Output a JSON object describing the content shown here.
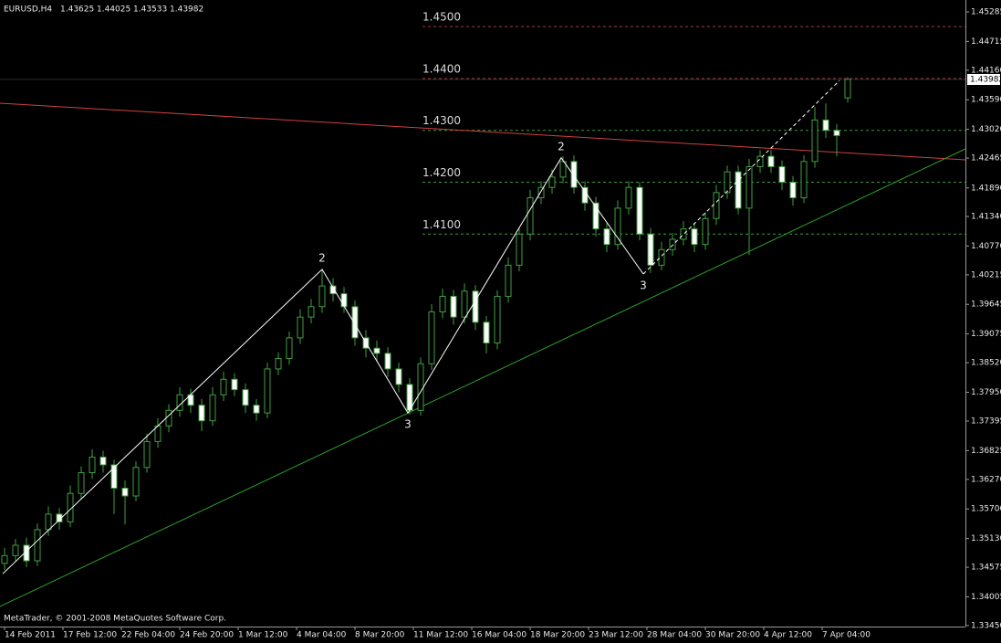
{
  "chart_data": {
    "type": "candlestick",
    "symbol": "EURUSD,H4",
    "footer": "MetaTrader, © 2001-2008 MetaQuotes Software Corp.",
    "x": [
      0,
      3,
      6,
      9,
      12,
      15,
      18,
      21,
      24,
      27,
      30,
      33,
      36,
      39,
      42,
      45,
      48,
      51,
      54,
      57,
      60,
      63,
      66,
      69,
      72,
      75,
      78,
      81,
      84,
      87,
      90,
      93,
      96,
      99,
      102,
      105,
      108,
      111,
      114,
      117,
      120,
      123,
      126,
      129,
      132,
      135,
      138,
      141,
      144,
      147,
      150,
      153,
      156,
      159,
      162,
      165,
      168,
      171,
      174,
      177,
      180,
      183,
      186,
      189,
      192,
      195,
      198,
      201,
      204,
      207,
      210,
      213,
      216,
      219,
      222,
      225,
      228,
      231
    ],
    "open": [
      1.3465,
      1.348,
      1.35,
      1.347,
      1.353,
      1.356,
      1.3545,
      1.36,
      1.364,
      1.367,
      1.3655,
      1.361,
      1.3595,
      1.365,
      1.37,
      1.373,
      1.376,
      1.379,
      1.377,
      1.374,
      1.379,
      1.382,
      1.38,
      1.377,
      1.3755,
      1.384,
      1.386,
      1.39,
      1.394,
      1.396,
      1.4,
      1.3985,
      1.396,
      1.39,
      1.388,
      1.387,
      1.384,
      1.381,
      1.376,
      1.385,
      1.395,
      1.398,
      1.394,
      1.399,
      1.393,
      1.389,
      1.398,
      1.404,
      1.41,
      1.417,
      1.419,
      1.421,
      1.424,
      1.419,
      1.416,
      1.411,
      1.408,
      1.415,
      1.419,
      1.41,
      1.404,
      1.407,
      1.409,
      1.411,
      1.408,
      1.413,
      1.418,
      1.422,
      1.415,
      1.423,
      1.425,
      1.423,
      1.42,
      1.417,
      1.424,
      1.432,
      1.43,
      1.43625
    ],
    "high": [
      1.3495,
      1.3512,
      1.3515,
      1.3542,
      1.3575,
      1.3572,
      1.3615,
      1.3652,
      1.3685,
      1.3682,
      1.3665,
      1.3625,
      1.3662,
      1.3715,
      1.3745,
      1.3772,
      1.3805,
      1.3802,
      1.3782,
      1.3805,
      1.3835,
      1.3832,
      1.3812,
      1.3782,
      1.3852,
      1.3872,
      1.3912,
      1.3955,
      1.3975,
      1.403,
      1.4015,
      1.3998,
      1.3972,
      1.3915,
      1.3895,
      1.3882,
      1.3852,
      1.3822,
      1.3862,
      1.3965,
      1.3995,
      1.3992,
      1.4005,
      1.4002,
      1.3942,
      1.3992,
      1.4055,
      1.4112,
      1.4185,
      1.4202,
      1.4225,
      1.425,
      1.4252,
      1.4202,
      1.4172,
      1.4122,
      1.4165,
      1.4202,
      1.42,
      1.4112,
      1.4085,
      1.4102,
      1.4125,
      1.4122,
      1.4142,
      1.4195,
      1.4232,
      1.4232,
      1.4245,
      1.4262,
      1.4262,
      1.4242,
      1.4212,
      1.4252,
      1.4345,
      1.4352,
      1.4312,
      1.44025
    ],
    "low": [
      1.3452,
      1.3468,
      1.3458,
      1.346,
      1.3518,
      1.353,
      1.3535,
      1.3588,
      1.3628,
      1.364,
      1.356,
      1.354,
      1.3585,
      1.364,
      1.3688,
      1.3718,
      1.3748,
      1.3755,
      1.372,
      1.373,
      1.3778,
      1.3788,
      1.3755,
      1.374,
      1.3745,
      1.3828,
      1.3848,
      1.3888,
      1.3928,
      1.3948,
      1.397,
      1.3948,
      1.3885,
      1.3862,
      1.3855,
      1.3825,
      1.3795,
      1.3752,
      1.375,
      1.3838,
      1.3938,
      1.3925,
      1.3928,
      1.3915,
      1.387,
      1.3878,
      1.3968,
      1.4028,
      1.4088,
      1.4158,
      1.4178,
      1.4198,
      1.4178,
      1.4145,
      1.4095,
      1.4065,
      1.407,
      1.4138,
      1.4088,
      1.4025,
      1.403,
      1.4058,
      1.4078,
      1.4065,
      1.407,
      1.4118,
      1.4168,
      1.4138,
      1.406,
      1.4218,
      1.4218,
      1.4185,
      1.4155,
      1.416,
      1.4228,
      1.4285,
      1.425,
      1.43533
    ],
    "close": [
      1.348,
      1.35,
      1.347,
      1.353,
      1.356,
      1.3545,
      1.36,
      1.364,
      1.367,
      1.3655,
      1.361,
      1.3595,
      1.365,
      1.37,
      1.373,
      1.376,
      1.379,
      1.377,
      1.374,
      1.379,
      1.382,
      1.38,
      1.377,
      1.3755,
      1.384,
      1.386,
      1.39,
      1.394,
      1.396,
      1.4,
      1.3985,
      1.396,
      1.39,
      1.388,
      1.387,
      1.384,
      1.381,
      1.376,
      1.385,
      1.395,
      1.398,
      1.394,
      1.399,
      1.393,
      1.389,
      1.398,
      1.404,
      1.41,
      1.417,
      1.419,
      1.421,
      1.424,
      1.419,
      1.416,
      1.411,
      1.408,
      1.415,
      1.419,
      1.41,
      1.404,
      1.407,
      1.409,
      1.411,
      1.408,
      1.413,
      1.418,
      1.422,
      1.415,
      1.423,
      1.425,
      1.423,
      1.42,
      1.417,
      1.424,
      1.432,
      1.43,
      1.429,
      1.43982
    ],
    "up_color": "#000000",
    "down_color": "#ffffff",
    "wick_color": "#3fa03f",
    "xlim": [
      -1.25,
      263.25
    ],
    "ylim": [
      1.33432,
      1.45514
    ],
    "xticks": [
      {
        "value": 0,
        "label": "14 Feb 2011"
      },
      {
        "value": 16,
        "label": "17 Feb 12:00"
      },
      {
        "value": 32,
        "label": "22 Feb 04:00"
      },
      {
        "value": 48,
        "label": "24 Feb 20:00"
      },
      {
        "value": 64,
        "label": "1 Mar 12:00"
      },
      {
        "value": 80,
        "label": "4 Mar 04:00"
      },
      {
        "value": 96,
        "label": "8 Mar 20:00"
      },
      {
        "value": 112,
        "label": "11 Mar 12:00"
      },
      {
        "value": 128,
        "label": "16 Mar 04:00"
      },
      {
        "value": 144,
        "label": "18 Mar 20:00"
      },
      {
        "value": 160,
        "label": "23 Mar 12:00"
      },
      {
        "value": 176,
        "label": "28 Mar 04:00"
      },
      {
        "value": 192,
        "label": "30 Mar 20:00"
      },
      {
        "value": 208,
        "label": "4 Apr 12:00"
      },
      {
        "value": 224,
        "label": "7 Apr 04:00"
      }
    ],
    "yticks": [
      1.45285,
      1.44715,
      {
        "value": 1.4416,
        "label": "1.44160"
      },
      {
        "value": 1.4359,
        "label": "1.43590"
      },
      {
        "value": 1.4302,
        "label": "1.43020"
      },
      1.42465,
      {
        "value": 1.4189,
        "label": "1.41890"
      },
      {
        "value": 1.4134,
        "label": "1.41340"
      },
      {
        "value": 1.4077,
        "label": "1.40770"
      },
      1.40215,
      1.39645,
      1.39075,
      {
        "value": 1.3852,
        "label": "1.38520"
      },
      {
        "value": 1.3795,
        "label": "1.37950"
      },
      1.37395,
      1.36825,
      {
        "value": 1.3627,
        "label": "1.36270"
      },
      {
        "value": 1.357,
        "label": "1.35700"
      },
      {
        "value": 1.3513,
        "label": "1.35130"
      },
      1.34575,
      1.34005,
      {
        "value": 1.3345,
        "label": "1.33450"
      }
    ],
    "levels": [
      {
        "value": 1.45,
        "label": "1.4500",
        "color": "#a83a3a"
      },
      {
        "value": 1.44,
        "label": "1.4400",
        "color": "#a83a3a"
      },
      {
        "value": 1.43,
        "label": "1.4300",
        "color": "#3f9a3f"
      },
      {
        "value": 1.42,
        "label": "1.4200",
        "color": "#3f9a3f"
      },
      {
        "value": 1.41,
        "label": "1.4100",
        "color": "#3f9a3f"
      }
    ],
    "trendlines": [
      {
        "color": "#d04040",
        "x": [
          -1.25,
          263.25
        ],
        "y": [
          1.43524,
          1.42432
        ]
      },
      {
        "color": "#2aa02a",
        "x": [
          -1.25,
          263.25
        ],
        "y": [
          1.3382,
          1.42643
        ]
      }
    ],
    "zigzag": {
      "color": "#ffffff",
      "x": [
        -0.5,
        87,
        110.5,
        152.5,
        175
      ],
      "y": [
        1.3445,
        1.4032,
        1.3755,
        1.4247,
        1.4023
      ]
    },
    "projection": {
      "color": "#ffffff",
      "x": [
        175,
        228.75
      ],
      "y": [
        1.4023,
        1.4396
      ]
    },
    "wave_labels": [
      "2",
      "3",
      "2",
      "3"
    ]
  }
}
